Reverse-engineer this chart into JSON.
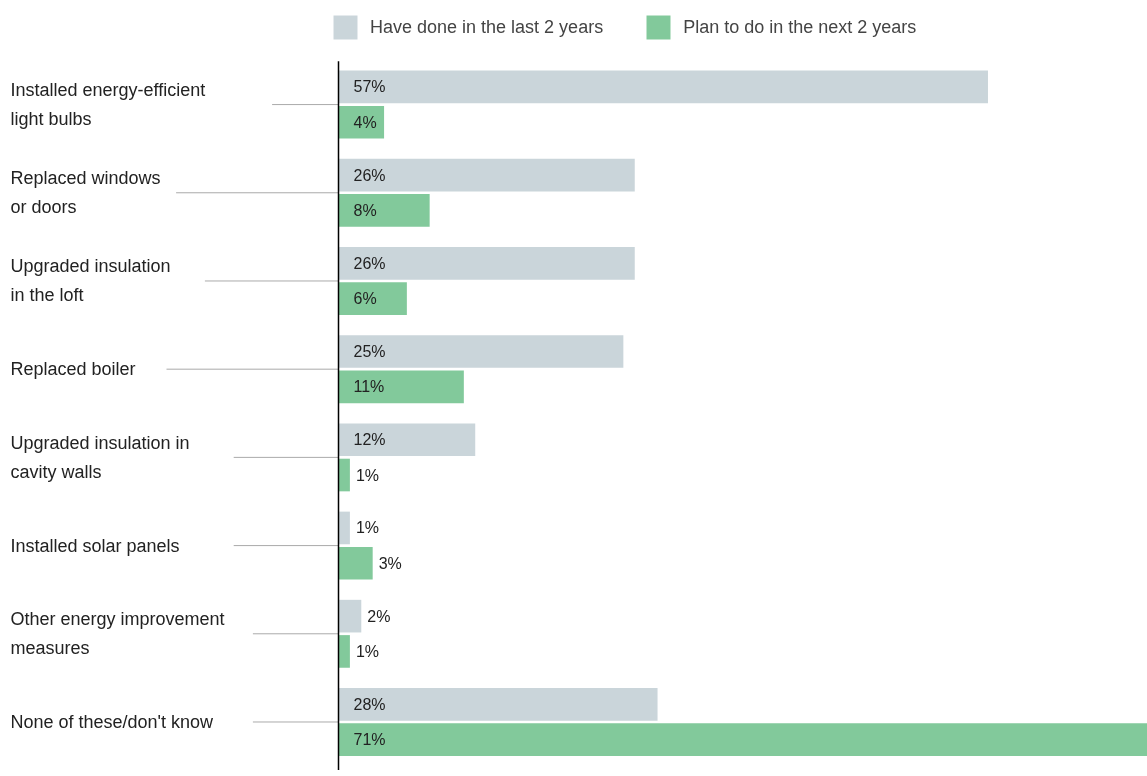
{
  "chart_data": {
    "type": "bar",
    "orientation": "horizontal",
    "categories": [
      "Installed energy-efficient\nlight bulbs",
      "Replaced windows\nor doors",
      "Upgraded insulation\nin the loft",
      "Replaced boiler",
      "Upgraded insulation in\ncavity walls",
      "Installed solar panels",
      "Other energy improvement\nmeasures",
      "None of these/don't know"
    ],
    "series": [
      {
        "name": "Have done in the last 2 years",
        "color": "#cad5da",
        "values": [
          57,
          26,
          26,
          25,
          12,
          1,
          2,
          28
        ],
        "value_labels": [
          "57%",
          "26%",
          "26%",
          "25%",
          "12%",
          "1%",
          "2%",
          "28%"
        ]
      },
      {
        "name": "Plan to do in the next 2 years",
        "color": "#82c99b",
        "values": [
          4,
          8,
          6,
          11,
          1,
          3,
          1,
          71
        ],
        "value_labels": [
          "4%",
          "8%",
          "6%",
          "11%",
          "1%",
          "3%",
          "1%",
          "71%"
        ]
      }
    ],
    "legend": "top",
    "grid": false
  }
}
